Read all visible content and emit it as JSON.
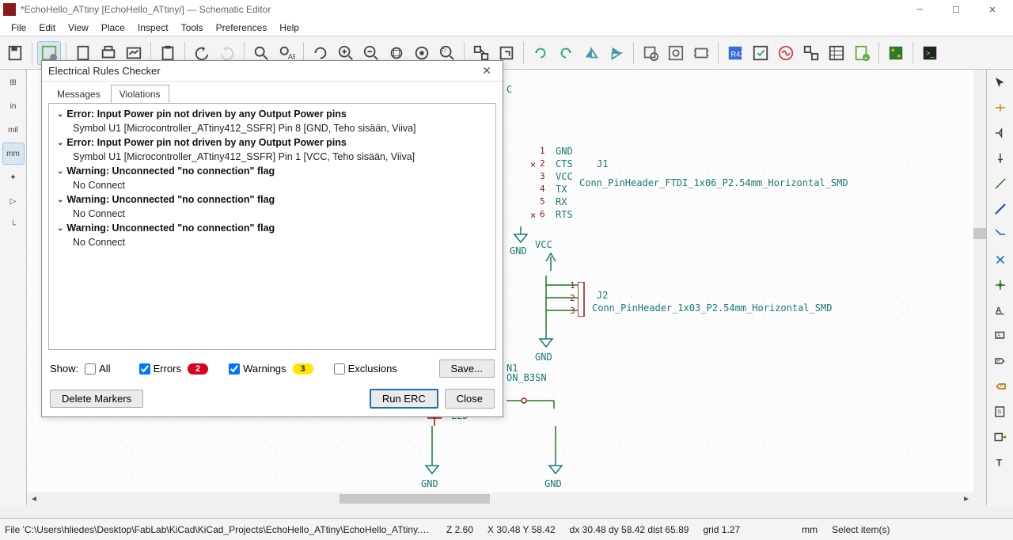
{
  "titlebar": {
    "text": "*EchoHello_ATtiny [EchoHello_ATtiny/] — Schematic Editor"
  },
  "menubar": [
    "File",
    "Edit",
    "View",
    "Place",
    "Inspect",
    "Tools",
    "Preferences",
    "Help"
  ],
  "left_toolbar": {
    "items": [
      {
        "label": "⊞",
        "name": "grid-icon",
        "active": false
      },
      {
        "label": "in",
        "name": "units-in",
        "active": false
      },
      {
        "label": "mil",
        "name": "units-mil",
        "active": false
      },
      {
        "label": "mm",
        "name": "units-mm",
        "active": true
      },
      {
        "label": "✦",
        "name": "cursor-full",
        "active": false
      },
      {
        "label": "▷",
        "name": "hidden-pins",
        "active": false
      },
      {
        "label": "└",
        "name": "free-angle",
        "active": false
      }
    ]
  },
  "dialog": {
    "title": "Electrical Rules Checker",
    "tabs": {
      "messages": "Messages",
      "violations": "Violations"
    },
    "violations": [
      {
        "type": "header",
        "text": "Error: Input Power pin not driven by any Output Power pins"
      },
      {
        "type": "child",
        "text": "Symbol U1 [Microcontroller_ATtiny412_SSFR] Pin 8 [GND, Teho sisään, Viiva]"
      },
      {
        "type": "header",
        "text": "Error: Input Power pin not driven by any Output Power pins"
      },
      {
        "type": "child",
        "text": "Symbol U1 [Microcontroller_ATtiny412_SSFR] Pin 1 [VCC, Teho sisään, Viiva]"
      },
      {
        "type": "header",
        "text": "Warning: Unconnected \"no connection\" flag"
      },
      {
        "type": "child",
        "text": "No Connect"
      },
      {
        "type": "header",
        "text": "Warning: Unconnected \"no connection\" flag"
      },
      {
        "type": "child",
        "text": "No Connect"
      },
      {
        "type": "header",
        "text": "Warning: Unconnected \"no connection\" flag"
      },
      {
        "type": "child",
        "text": "No Connect"
      }
    ],
    "show_label": "Show:",
    "all_label": "All",
    "errors_label": "Errors",
    "errors_count": "2",
    "warnings_label": "Warnings",
    "warnings_count": "3",
    "exclusions_label": "Exclusions",
    "save_label": "Save...",
    "delete_markers": "Delete Markers",
    "run_erc": "Run ERC",
    "close": "Close"
  },
  "schematic": {
    "c_label": "C",
    "j1_pins": [
      {
        "n": "1",
        "net": "GND"
      },
      {
        "n": "2",
        "net": "CTS"
      },
      {
        "n": "3",
        "net": "VCC"
      },
      {
        "n": "4",
        "net": "TX"
      },
      {
        "n": "5",
        "net": "RX"
      },
      {
        "n": "6",
        "net": "RTS"
      }
    ],
    "j1_ref": "J1",
    "j1_val": "Conn_PinHeader_FTDI_1x06_P2.54mm_Horizontal_SMD",
    "j2_pins": [
      "1",
      "2",
      "3"
    ],
    "j2_ref": "J2",
    "j2_val": "Conn_PinHeader_1x03_P2.54mm_Horizontal_SMD",
    "gnd1": "GND",
    "vcc1": "VCC",
    "gnd2": "GND",
    "sw1_ref": "N1",
    "sw1_val": "ON_B3SN",
    "led": "LED",
    "gnd3": "GND",
    "gnd4": "GND"
  },
  "statusbar": {
    "path": "File 'C:\\Users\\hliedes\\Desktop\\FabLab\\KiCad\\KiCad_Projects\\EchoHello_ATtiny\\EchoHello_ATtiny.kicad_s…",
    "zoom": "Z 2.60",
    "xy": "X 30.48  Y 58.42",
    "dxy": "dx 30.48  dy 58.42  dist 65.89",
    "grid": "grid 1.27",
    "units": "mm",
    "hint": "Select item(s)"
  },
  "colors": {
    "teal": "#187878",
    "maroon": "#8b1a1a",
    "wire_green": "#1e7a1e",
    "wire_blue": "#2050c0"
  }
}
